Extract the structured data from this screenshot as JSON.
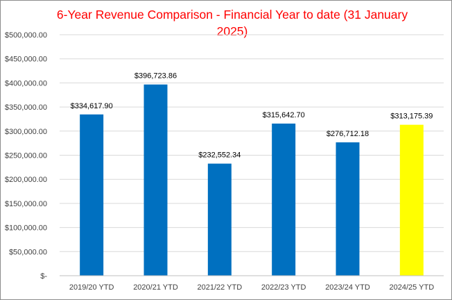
{
  "chart_data": {
    "type": "bar",
    "title": "6-Year Revenue Comparison - Financial Year to date (31 January 2025)",
    "categories": [
      "2019/20 YTD",
      "2020/21 YTD",
      "2021/22 YTD",
      "2022/23 YTD",
      "2023/24 YTD",
      "2024/25 YTD"
    ],
    "values": [
      334617.9,
      396723.86,
      232552.34,
      315642.7,
      276712.18,
      313175.39
    ],
    "data_labels": [
      "$334,617.90",
      "$396,723.86",
      "$232,552.34",
      "$315,642.70",
      "$276,712.18",
      "$313,175.39"
    ],
    "bar_colors": [
      "#0070c0",
      "#0070c0",
      "#0070c0",
      "#0070c0",
      "#0070c0",
      "#ffff00"
    ],
    "ylim": [
      0,
      500000
    ],
    "y_ticks": [
      0,
      50000,
      100000,
      150000,
      200000,
      250000,
      300000,
      350000,
      400000,
      450000,
      500000
    ],
    "y_tick_labels": [
      "$-",
      "$50,000.00",
      "$100,000.00",
      "$150,000.00",
      "$200,000.00",
      "$250,000.00",
      "$300,000.00",
      "$350,000.00",
      "$400,000.00",
      "$450,000.00",
      "$500,000.00"
    ],
    "grid": true,
    "legend": "none",
    "xlabel": "",
    "ylabel": ""
  },
  "colors": {
    "title": "#ff0000",
    "grid": "#d9d9d9",
    "axis": "#bfbfbf"
  }
}
